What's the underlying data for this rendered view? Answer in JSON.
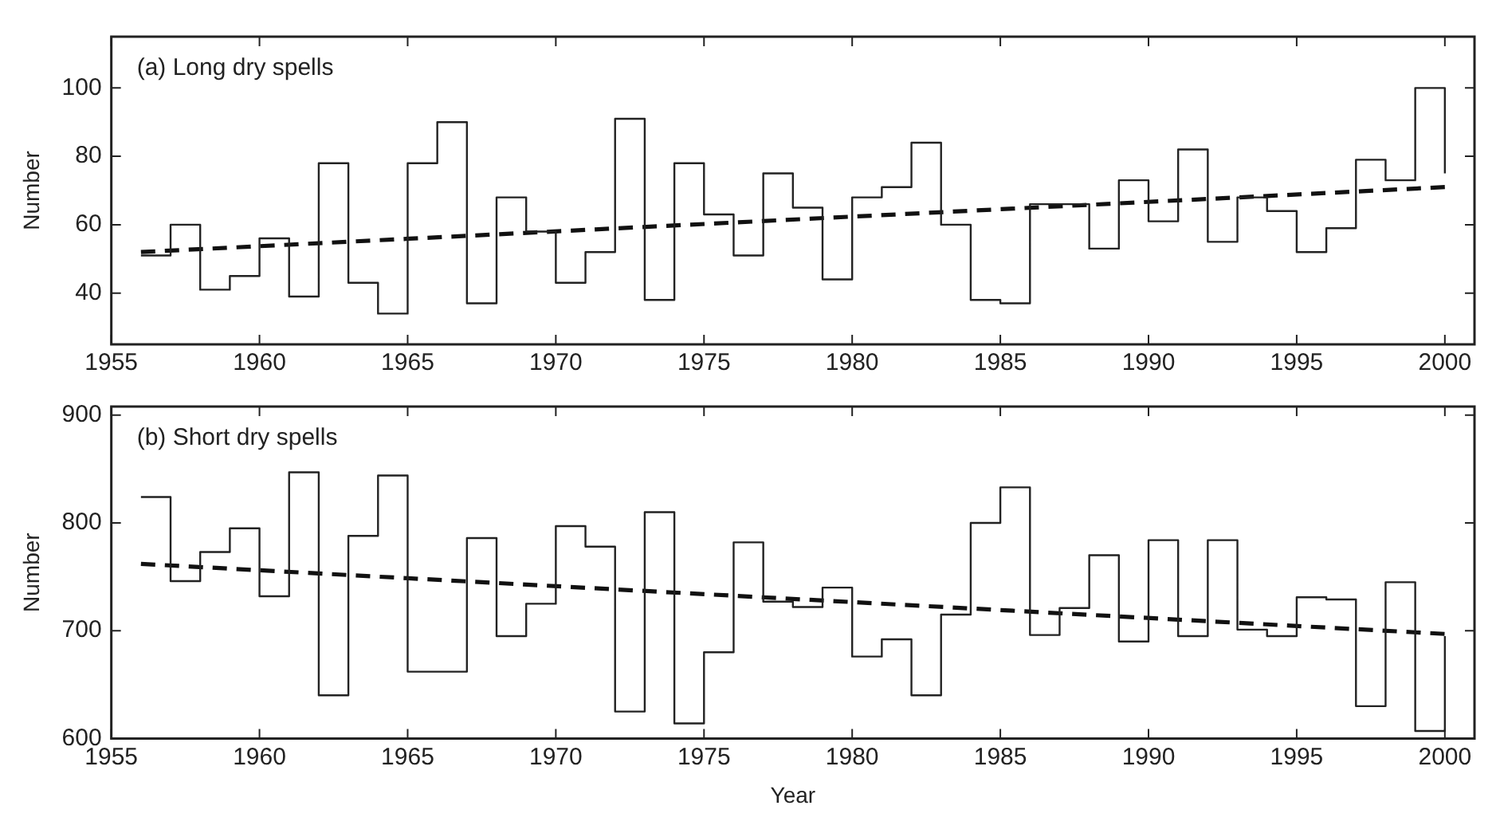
{
  "chart_data": [
    {
      "type": "step",
      "title": "(a) Long dry spells",
      "ylabel": "Number",
      "xlim": [
        1955,
        2001
      ],
      "xticks": [
        1955,
        1960,
        1965,
        1970,
        1975,
        1980,
        1985,
        1990,
        1995,
        2000
      ],
      "ylim": [
        25,
        115
      ],
      "yticks": [
        40,
        60,
        80,
        100
      ],
      "grid": false,
      "legend": false,
      "marker": "none",
      "series": [
        {
          "color": "#222222",
          "x": [
            1956,
            1957,
            1958,
            1959,
            1960,
            1961,
            1962,
            1963,
            1964,
            1965,
            1966,
            1967,
            1968,
            1969,
            1970,
            1971,
            1972,
            1973,
            1974,
            1975,
            1976,
            1977,
            1978,
            1979,
            1980,
            1981,
            1982,
            1983,
            1984,
            1985,
            1986,
            1987,
            1988,
            1989,
            1990,
            1991,
            1992,
            1993,
            1994,
            1995,
            1996,
            1997,
            1998,
            1999,
            2000
          ],
          "values": [
            51,
            60,
            41,
            45,
            56,
            39,
            78,
            43,
            34,
            78,
            90,
            37,
            68,
            58,
            43,
            52,
            91,
            38,
            78,
            63,
            51,
            75,
            65,
            44,
            68,
            71,
            84,
            60,
            38,
            37,
            66,
            66,
            53,
            73,
            61,
            82,
            55,
            68,
            64,
            52,
            59,
            79,
            73,
            100,
            75
          ]
        },
        {
          "type": "line",
          "color": "#111111",
          "line_style": "dashed",
          "x": [
            1956,
            2000
          ],
          "values": [
            52,
            71
          ]
        }
      ]
    },
    {
      "type": "step",
      "title": "(b) Short dry spells",
      "ylabel": "Number",
      "xlabel": "Year",
      "xlim": [
        1955,
        2001
      ],
      "xticks": [
        1955,
        1960,
        1965,
        1970,
        1975,
        1980,
        1985,
        1990,
        1995,
        2000
      ],
      "ylim": [
        600,
        908
      ],
      "yticks": [
        600,
        700,
        800,
        900
      ],
      "grid": false,
      "legend": false,
      "marker": "none",
      "series": [
        {
          "color": "#222222",
          "x": [
            1956,
            1957,
            1958,
            1959,
            1960,
            1961,
            1962,
            1963,
            1964,
            1965,
            1966,
            1967,
            1968,
            1969,
            1970,
            1971,
            1972,
            1973,
            1974,
            1975,
            1976,
            1977,
            1978,
            1979,
            1980,
            1981,
            1982,
            1983,
            1984,
            1985,
            1986,
            1987,
            1988,
            1989,
            1990,
            1991,
            1992,
            1993,
            1994,
            1995,
            1996,
            1997,
            1998,
            1999,
            2000
          ],
          "values": [
            824,
            746,
            773,
            795,
            732,
            847,
            640,
            788,
            844,
            662,
            662,
            786,
            695,
            725,
            797,
            778,
            625,
            810,
            614,
            680,
            782,
            727,
            722,
            740,
            676,
            692,
            640,
            715,
            800,
            833,
            696,
            721,
            770,
            690,
            784,
            695,
            784,
            701,
            695,
            731,
            729,
            630,
            745,
            607,
            695
          ]
        },
        {
          "type": "line",
          "color": "#111111",
          "line_style": "dashed",
          "x": [
            1956,
            2000
          ],
          "values": [
            762,
            697
          ]
        }
      ]
    }
  ]
}
